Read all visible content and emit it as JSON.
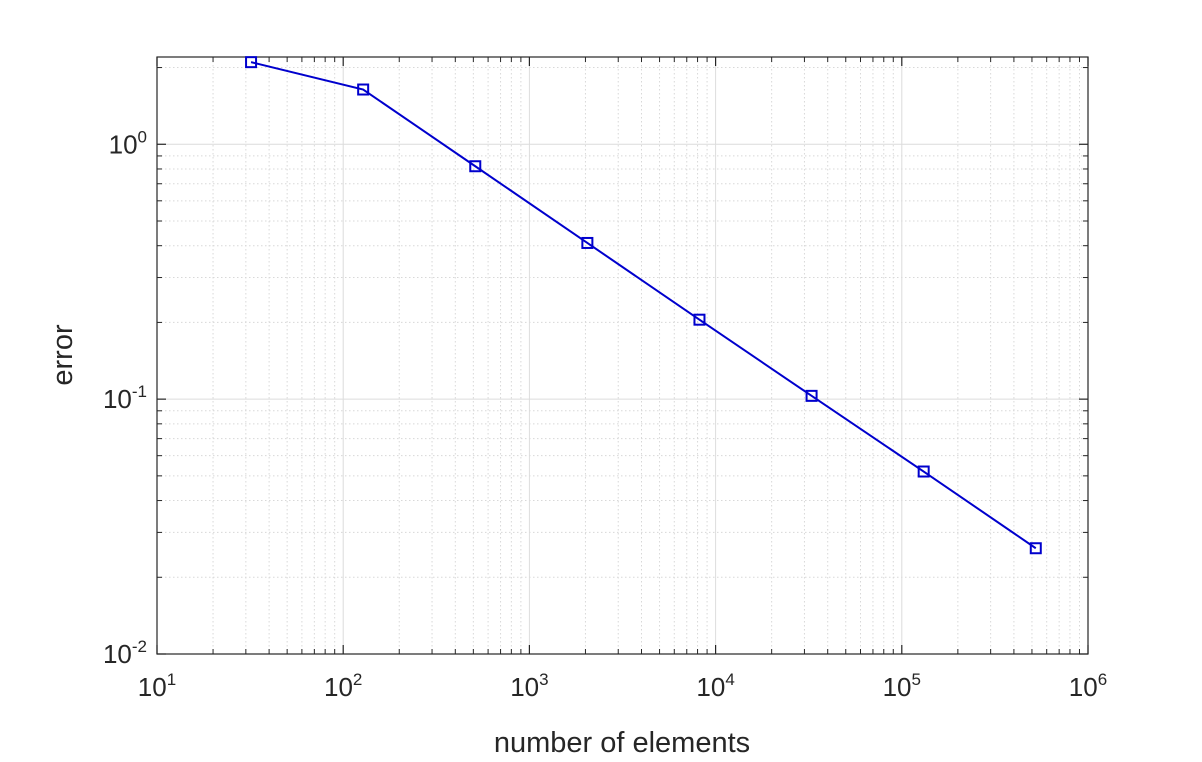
{
  "chart_data": {
    "type": "line",
    "title": "",
    "xlabel": "number of elements",
    "ylabel": "error",
    "xscale": "log",
    "yscale": "log",
    "xlim": [
      10,
      1000000
    ],
    "ylim": [
      0.01,
      2.2
    ],
    "grid": true,
    "minor_grid": true,
    "legend": "none",
    "x_tick_labels": [
      {
        "base": "10",
        "exp": "1"
      },
      {
        "base": "10",
        "exp": "2"
      },
      {
        "base": "10",
        "exp": "3"
      },
      {
        "base": "10",
        "exp": "4"
      },
      {
        "base": "10",
        "exp": "5"
      },
      {
        "base": "10",
        "exp": "6"
      }
    ],
    "y_tick_labels": [
      {
        "base": "10",
        "exp": "-2"
      },
      {
        "base": "10",
        "exp": "-1"
      },
      {
        "base": "10",
        "exp": "0"
      }
    ],
    "series": [
      {
        "color": "#0000cd",
        "marker": "square",
        "x": [
          32,
          128,
          512,
          2048,
          8192,
          32768,
          131072,
          524288
        ],
        "y": [
          2.1,
          1.64,
          0.82,
          0.41,
          0.205,
          0.103,
          0.052,
          0.026
        ]
      }
    ]
  }
}
